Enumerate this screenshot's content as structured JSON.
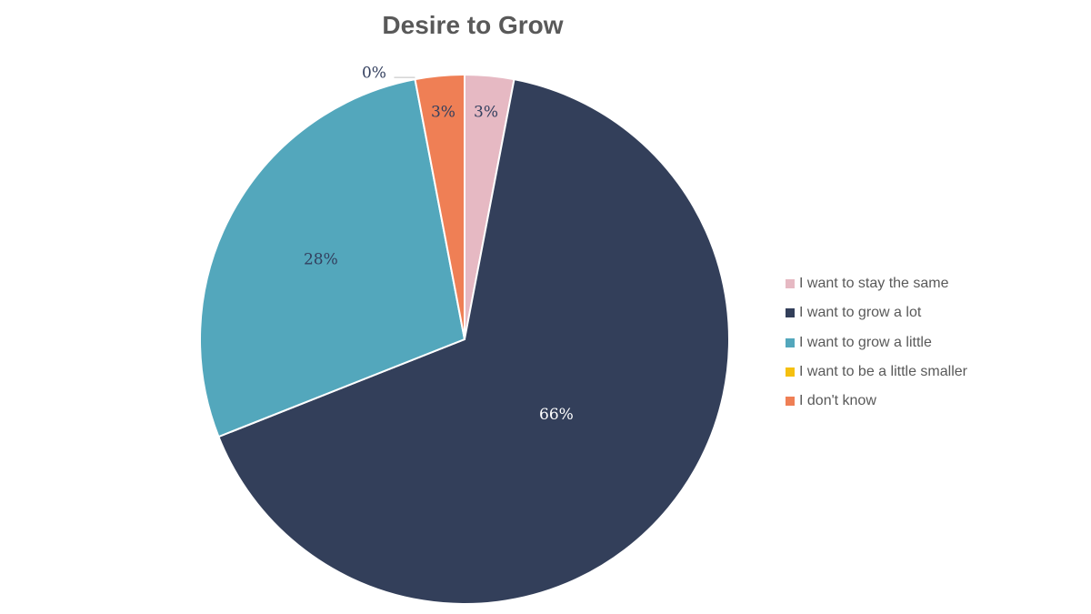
{
  "chart_data": {
    "type": "pie",
    "title": "Desire to Grow",
    "slices": [
      {
        "label": "I want to stay the same",
        "value": 3,
        "display": "3%",
        "color": "#E6B9C3",
        "label_color": "#333F5E"
      },
      {
        "label": "I want to grow a lot",
        "value": 66,
        "display": "66%",
        "color": "#333F5A",
        "label_color": "#FFFFFF"
      },
      {
        "label": "I want to grow a little",
        "value": 28,
        "display": "28%",
        "color": "#53A7BC",
        "label_color": "#333F5E"
      },
      {
        "label": "I want to be a little smaller",
        "value": 0,
        "display": "0%",
        "color": "#F5C010",
        "label_color": "#333F5E"
      },
      {
        "label": "I don't know",
        "value": 3,
        "display": "3%",
        "color": "#EF7F55",
        "label_color": "#333F5E"
      }
    ],
    "legend_position": "right",
    "start_angle": "top",
    "direction": "clockwise"
  }
}
